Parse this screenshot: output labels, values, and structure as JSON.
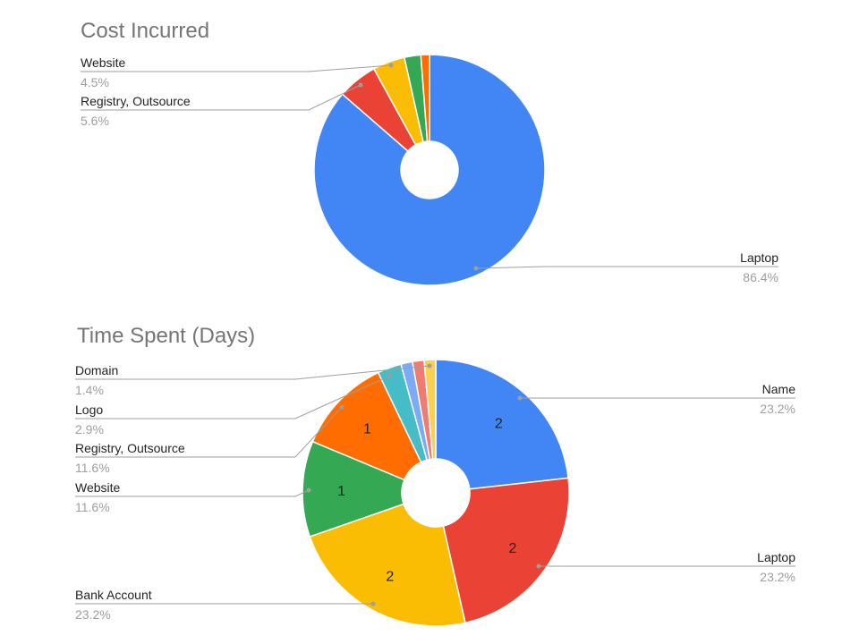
{
  "chart_data": [
    {
      "type": "pie",
      "title": "Cost Incurred",
      "categories": [
        "Laptop",
        "Registry, Outsource",
        "Website",
        "Green slice",
        "Orange slice"
      ],
      "values": [
        86.4,
        5.6,
        4.5,
        2.3,
        1.2
      ],
      "colors": [
        "#4285f4",
        "#ea4335",
        "#fbbc04",
        "#34a853",
        "#ff6d01"
      ],
      "labels": [
        {
          "name": "Laptop",
          "pct": "86.4%"
        },
        {
          "name": "Registry, Outsource",
          "pct": "5.6%"
        },
        {
          "name": "Website",
          "pct": "4.5%"
        }
      ]
    },
    {
      "type": "pie",
      "title": "Time Spent (Days)",
      "categories": [
        "Name",
        "Laptop",
        "Bank Account",
        "Website",
        "Registry, Outsource",
        "Logo",
        "Domain",
        "Pink slice",
        "Light yellow slice"
      ],
      "values": [
        23.2,
        23.2,
        23.2,
        11.6,
        11.6,
        2.9,
        1.4,
        1.4,
        1.4
      ],
      "colors": [
        "#4285f4",
        "#ea4335",
        "#fbbc04",
        "#34a853",
        "#ff6d01",
        "#46bdc6",
        "#7baaf7",
        "#f07b72",
        "#fcd04f"
      ],
      "slice_values": [
        "2",
        "2",
        "2",
        "1",
        "1",
        "",
        "",
        "",
        ""
      ],
      "labels": [
        {
          "name": "Name",
          "pct": "23.2%"
        },
        {
          "name": "Laptop",
          "pct": "23.2%"
        },
        {
          "name": "Bank Account",
          "pct": "23.2%"
        },
        {
          "name": "Website",
          "pct": "11.6%"
        },
        {
          "name": "Registry, Outsource",
          "pct": "11.6%"
        },
        {
          "name": "Logo",
          "pct": "2.9%"
        },
        {
          "name": "Domain",
          "pct": "1.4%"
        }
      ]
    }
  ]
}
